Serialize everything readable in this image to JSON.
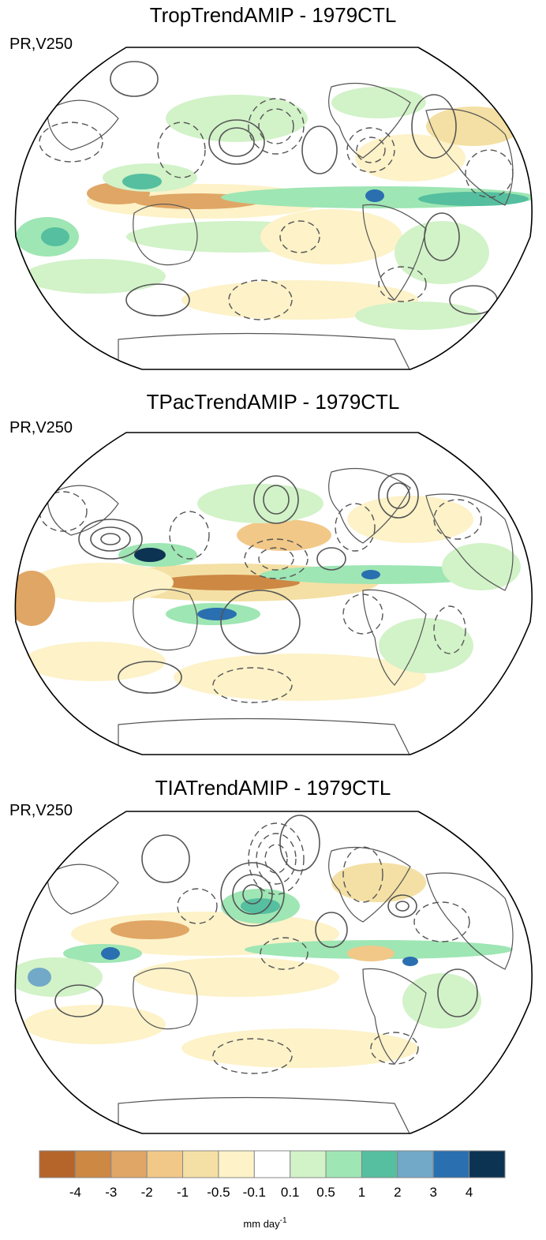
{
  "panels": [
    {
      "title": "TropTrendAMIP - 1979CTL",
      "subtitle": "PR,V250"
    },
    {
      "title": "TPacTrendAMIP - 1979CTL",
      "subtitle": "PR,V250"
    },
    {
      "title": "TIATrendAMIP - 1979CTL",
      "subtitle": "PR,V250"
    }
  ],
  "colorbar": {
    "colors": [
      "#b5652a",
      "#cd8844",
      "#e0a665",
      "#f1c888",
      "#f4e0a4",
      "#fdf2c8",
      "#ffffff",
      "#d2f2c8",
      "#9ee6b4",
      "#55bf9f",
      "#72a8c8",
      "#2a6fb0",
      "#0d3352"
    ],
    "tick_labels": [
      "-4",
      "-3",
      "-2",
      "-1",
      "-0.5",
      "-0.1",
      "0.1",
      "0.5",
      "1",
      "2",
      "3",
      "4"
    ],
    "unit": "mm day",
    "unit_exp": "-1"
  }
}
